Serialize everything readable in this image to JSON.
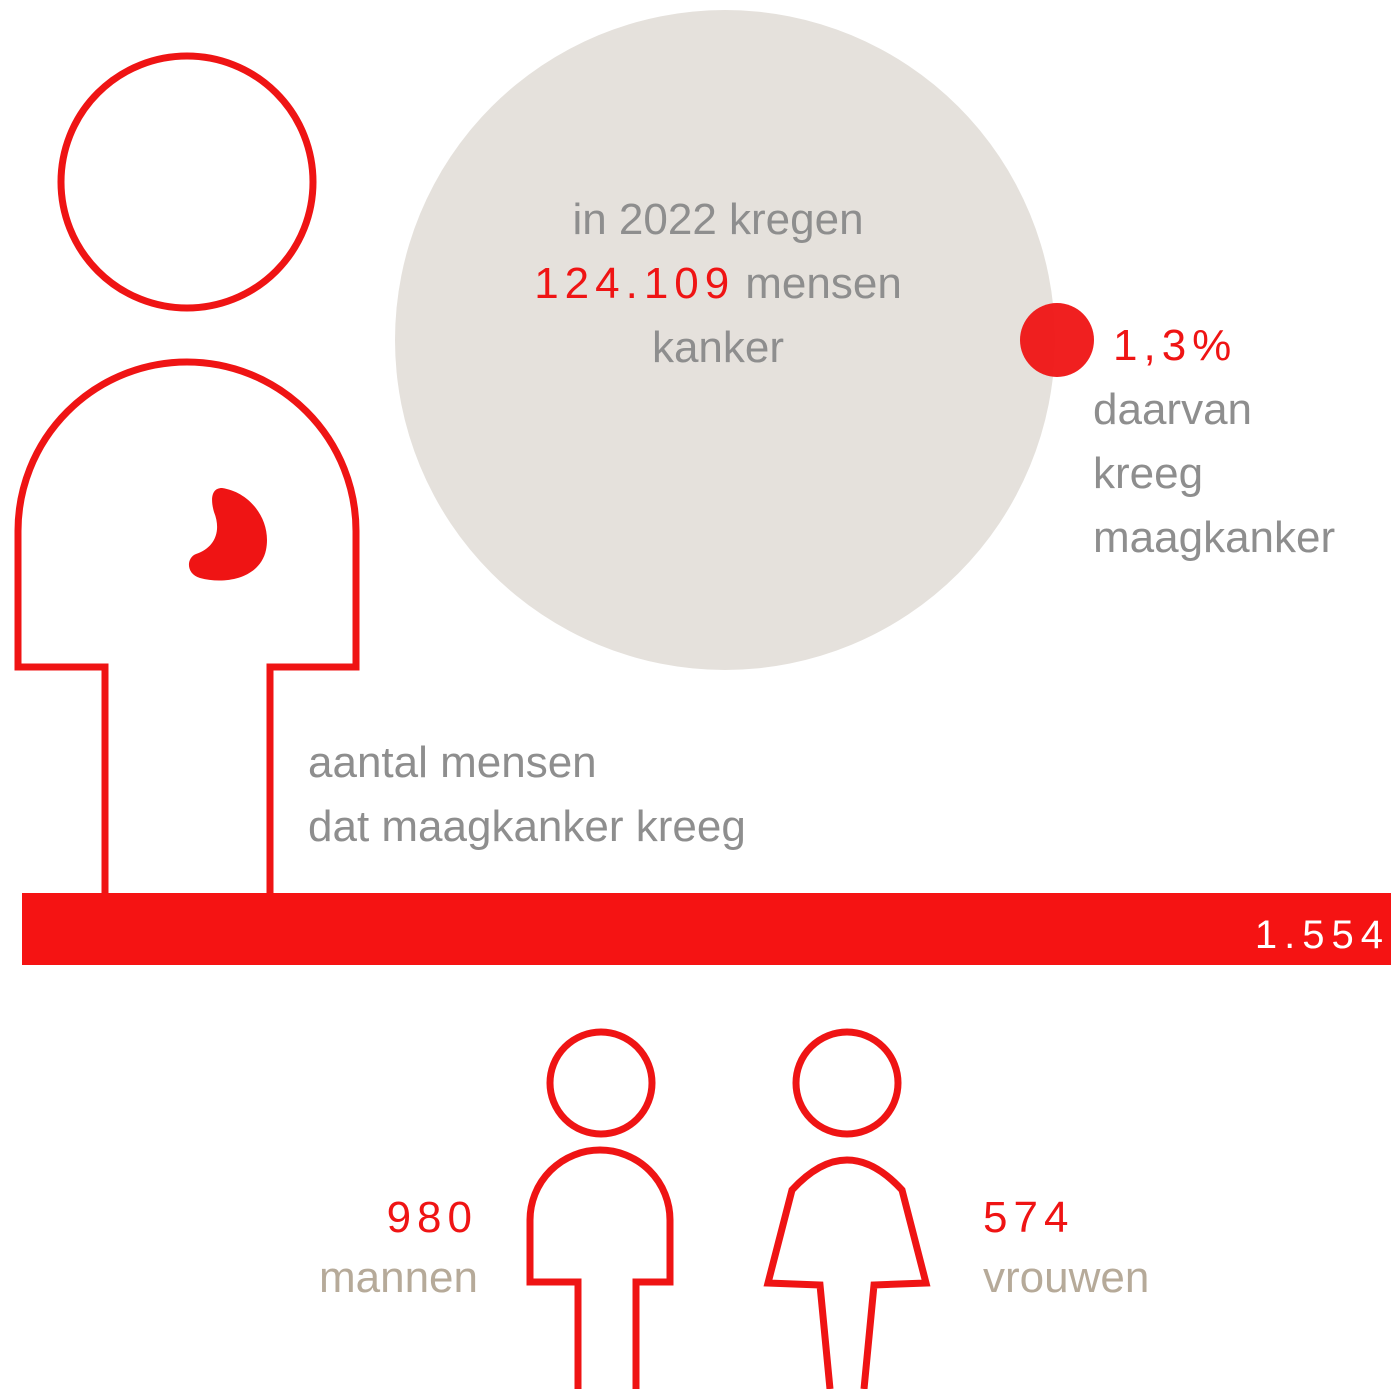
{
  "intro": {
    "line1": "in 2022 kregen",
    "count": "124.109",
    "line2_rest": "mensen",
    "line3": "kanker"
  },
  "share": {
    "value": "1,3%",
    "lines": [
      "daarvan",
      "kreeg",
      "maagkanker"
    ]
  },
  "total": {
    "label_lines": [
      "aantal mensen",
      "dat maagkanker kreeg"
    ],
    "value": "1.554"
  },
  "men": {
    "value": "980",
    "label": "mannen"
  },
  "women": {
    "value": "574",
    "label": "vrouwen"
  }
}
